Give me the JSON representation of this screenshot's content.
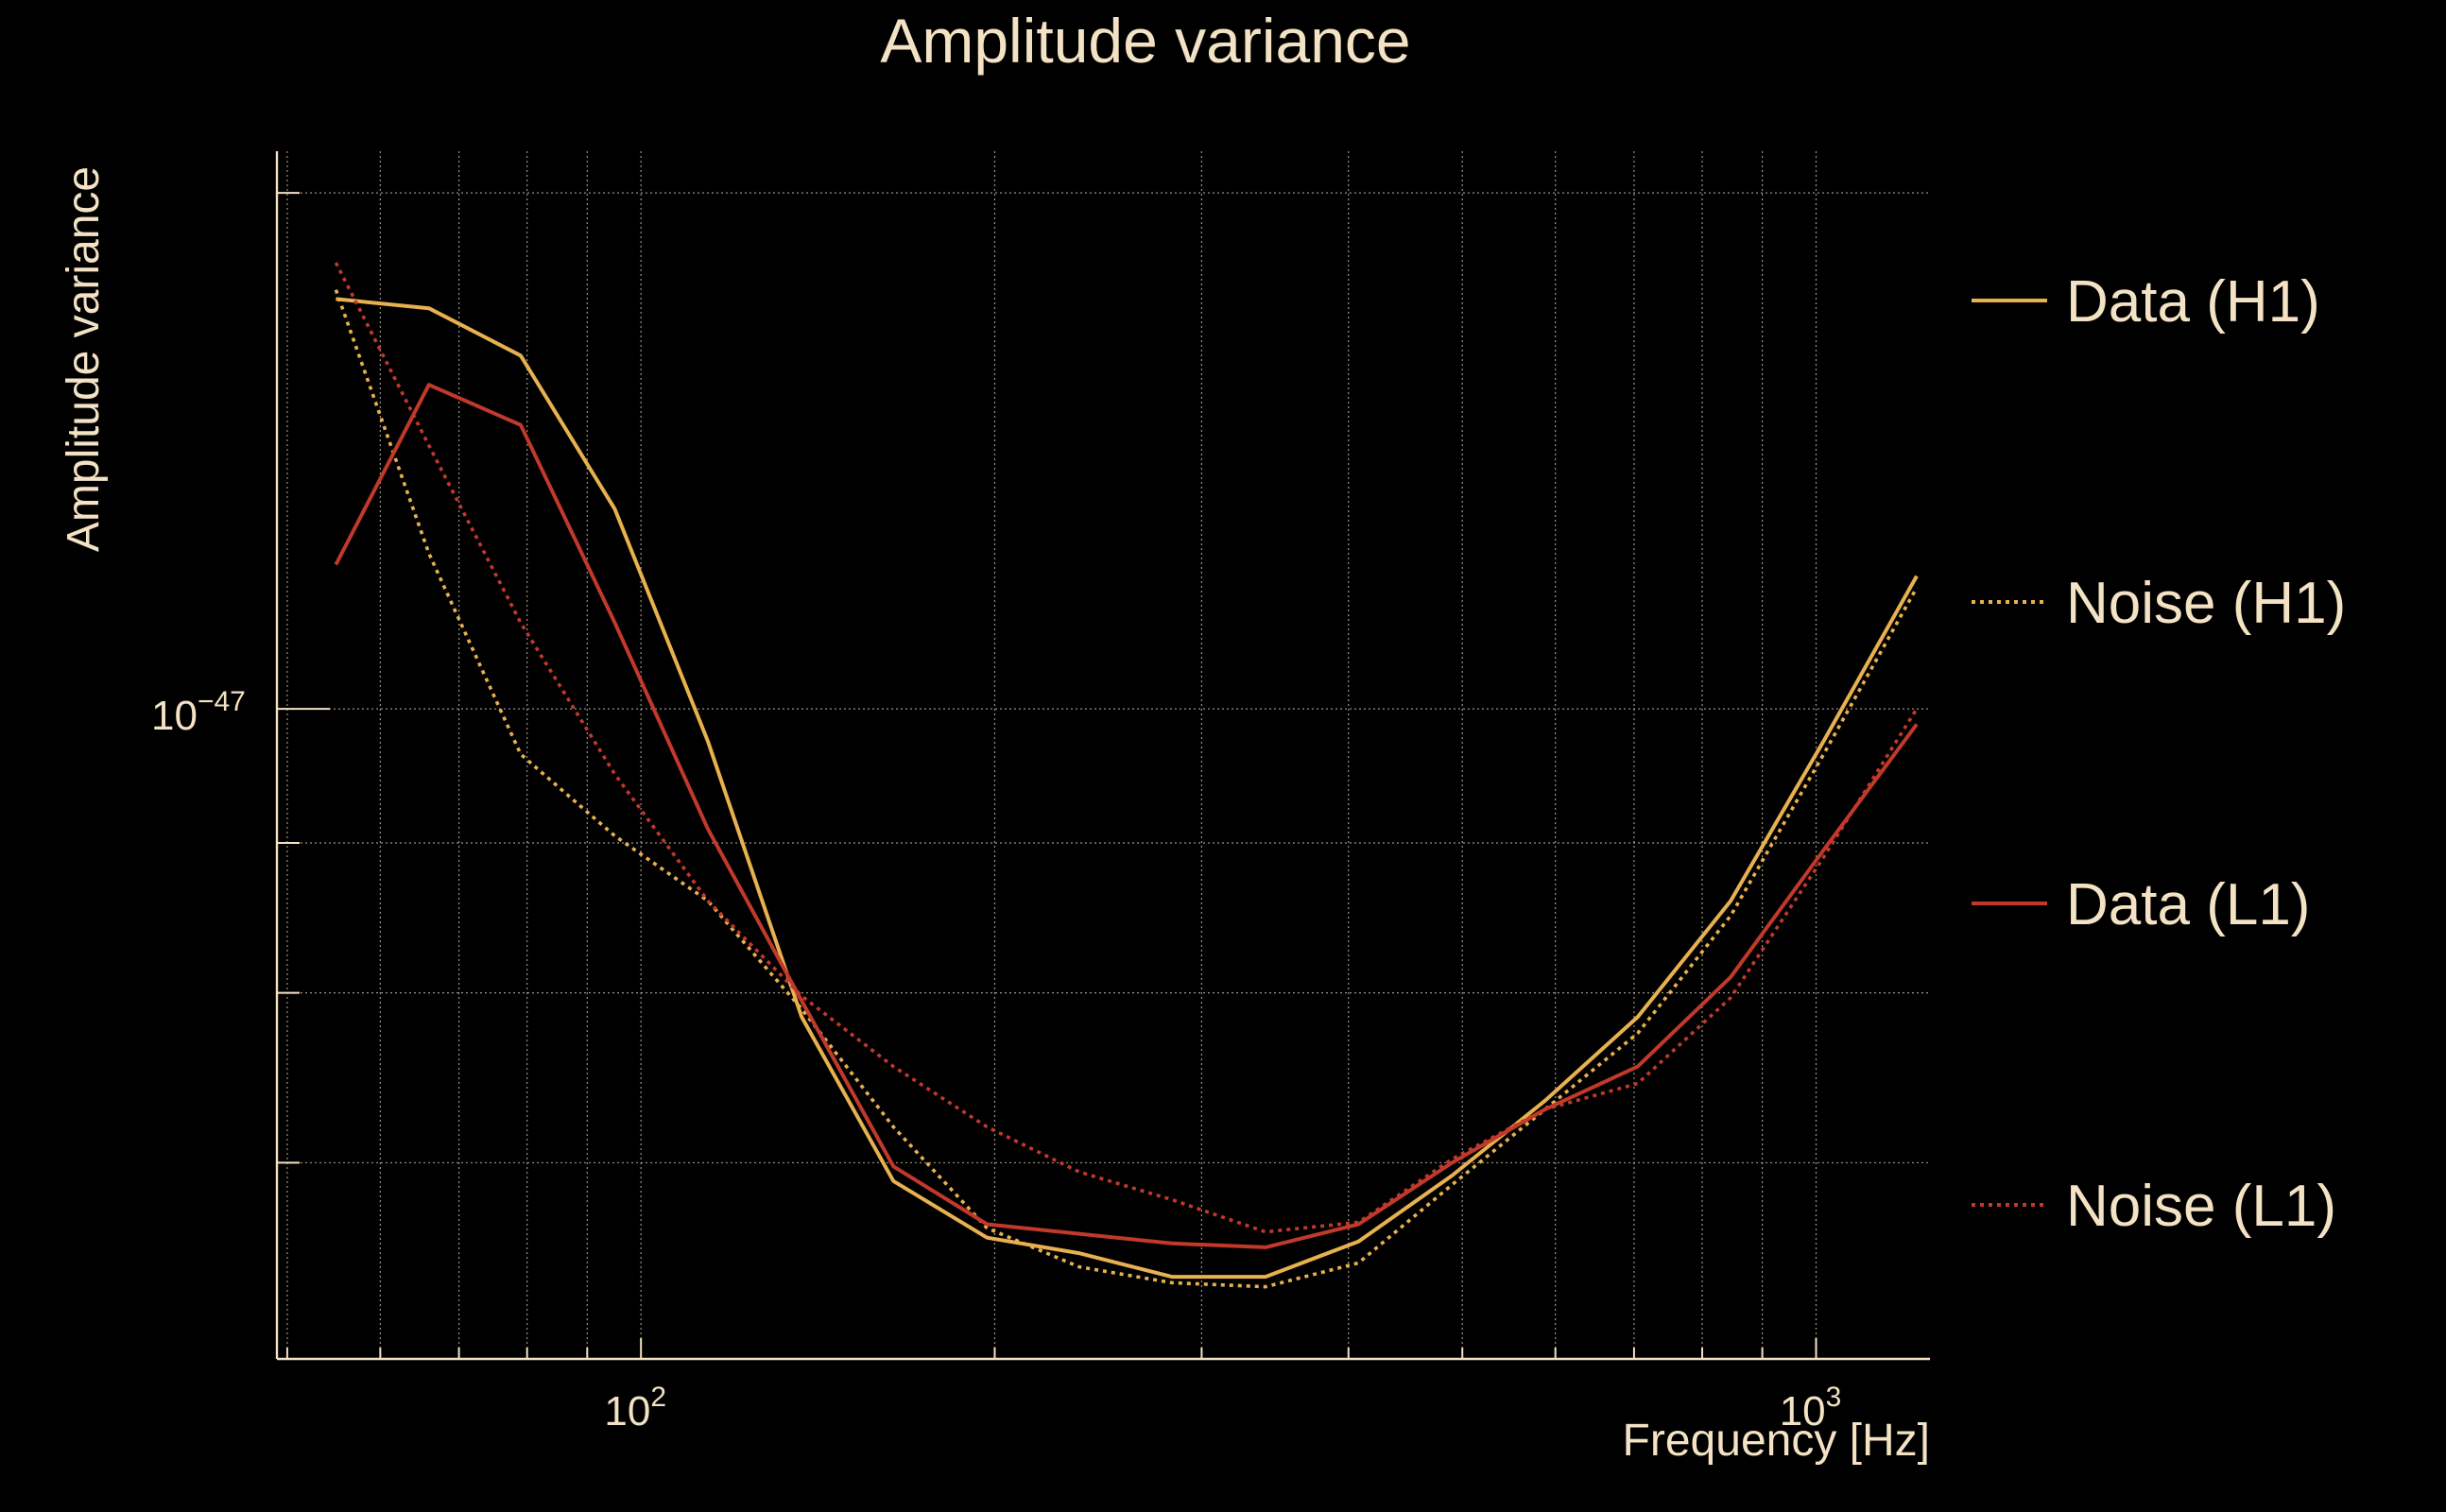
{
  "colors": {
    "background": "#000000",
    "text": "#f3e2c4",
    "axis": "#f3e2c4",
    "grid": "#cfc6b4",
    "h1": "#e8b14f",
    "l1": "#c0392b"
  },
  "chart_data": {
    "type": "line",
    "title": "Amplitude variance",
    "xlabel": "Frequency [Hz]",
    "ylabel": "Amplitude variance",
    "xscale": "log",
    "yscale": "log",
    "xlim": [
      49,
      1250
    ],
    "ylim": [
      6e-48,
      1.55e-47
    ],
    "x_ticks": [
      {
        "base": "10",
        "exp": "2",
        "value": 100
      },
      {
        "base": "10",
        "exp": "3",
        "value": 1000
      }
    ],
    "y_ticks": [
      {
        "base": "10",
        "exp": "−47",
        "value": 1e-47
      }
    ],
    "grid": true,
    "legend_position": "right",
    "series": [
      {
        "name": "Data (H1)",
        "color": "#e8b14f",
        "style": "solid",
        "x": [
          55,
          66,
          79,
          95,
          114,
          137,
          164,
          197,
          236,
          283,
          340,
          408,
          490,
          588,
          705,
          846,
          1015,
          1218
        ],
        "y": [
          1.38e-47,
          1.37e-47,
          1.32e-47,
          1.17e-47,
          9.75e-48,
          7.85e-48,
          6.9e-48,
          6.6e-48,
          6.52e-48,
          6.4e-48,
          6.4e-48,
          6.58e-48,
          6.93e-48,
          7.35e-48,
          7.85e-48,
          8.6e-48,
          9.75e-48,
          1.11e-47
        ]
      },
      {
        "name": "Noise (H1)",
        "color": "#e8b14f",
        "style": "dotted",
        "x": [
          55,
          66,
          79,
          95,
          114,
          137,
          164,
          197,
          236,
          283,
          340,
          408,
          490,
          588,
          705,
          846,
          1015,
          1218
        ],
        "y": [
          1.39e-47,
          1.13e-47,
          9.65e-48,
          9.05e-48,
          8.6e-48,
          7.9e-48,
          7.2e-48,
          6.65e-48,
          6.45e-48,
          6.37e-48,
          6.35e-48,
          6.47e-48,
          6.88e-48,
          7.3e-48,
          7.75e-48,
          8.5e-48,
          9.65e-48,
          1.1e-47
        ]
      },
      {
        "name": "Data (L1)",
        "color": "#c0392b",
        "style": "solid",
        "x": [
          55,
          66,
          79,
          95,
          114,
          137,
          164,
          197,
          236,
          283,
          340,
          408,
          490,
          588,
          705,
          846,
          1015,
          1218
        ],
        "y": [
          1.12e-47,
          1.29e-47,
          1.25e-47,
          1.07e-47,
          9.1e-48,
          7.95e-48,
          6.98e-48,
          6.67e-48,
          6.62e-48,
          6.57e-48,
          6.55e-48,
          6.67e-48,
          7e-48,
          7.3e-48,
          7.55e-48,
          8.1e-48,
          8.95e-48,
          9.88e-48
        ]
      },
      {
        "name": "Noise (L1)",
        "color": "#c0392b",
        "style": "dotted",
        "x": [
          55,
          66,
          79,
          95,
          114,
          137,
          164,
          197,
          236,
          283,
          340,
          408,
          490,
          588,
          705,
          846,
          1015,
          1218
        ],
        "y": [
          1.42e-47,
          1.23e-47,
          1.07e-47,
          9.5e-48,
          8.6e-48,
          7.98e-48,
          7.55e-48,
          7.2e-48,
          6.95e-48,
          6.8e-48,
          6.63e-48,
          6.68e-48,
          7.02e-48,
          7.3e-48,
          7.45e-48,
          7.97e-48,
          8.9e-48,
          1e-47
        ]
      }
    ]
  }
}
